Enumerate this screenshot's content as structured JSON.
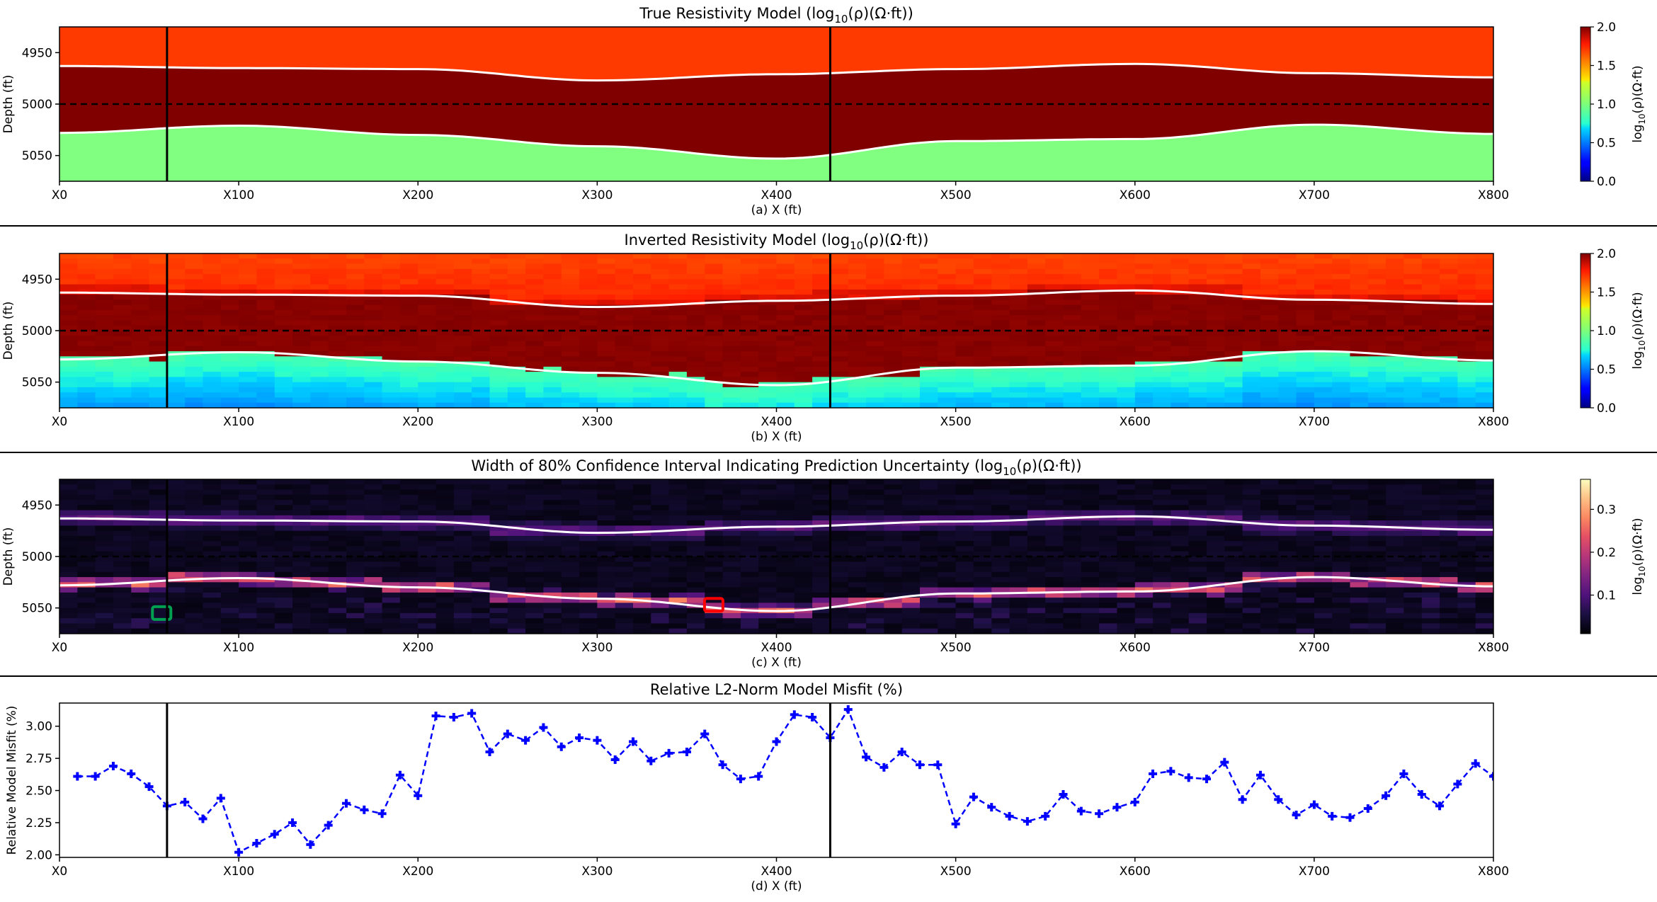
{
  "chart_data": [
    {
      "type": "heatmap",
      "title": "True Resistivity Model (log10(ρ)(Ω·ft))",
      "title_parts": {
        "pre": "True Resistivity Model (log",
        "sub": "10",
        "post": "(ρ)(Ω·ft))"
      },
      "xlabel": "(a) X (ft)",
      "ylabel": "Depth (ft)",
      "xlim": [
        0,
        800
      ],
      "ylim": [
        5075,
        4925
      ],
      "x_ticks": [
        0,
        100,
        200,
        300,
        400,
        500,
        600,
        700,
        800
      ],
      "x_tick_labels": [
        "X0",
        "X100",
        "X200",
        "X300",
        "X400",
        "X500",
        "X600",
        "X700",
        "X800"
      ],
      "y_ticks": [
        4950,
        5000,
        5050
      ],
      "y_tick_labels": [
        "4950",
        "5000",
        "5050"
      ],
      "colormap": "jet",
      "colorbar": {
        "label_pre": "log",
        "label_sub": "10",
        "label_post": "(ρ)(Ω·ft)",
        "range": [
          0,
          2
        ],
        "ticks": [
          "0.0",
          "0.5",
          "1.0",
          "1.5",
          "2.0"
        ]
      },
      "layers": [
        {
          "name": "top layer",
          "log10_rho": 1.7,
          "color": "#ff3a00"
        },
        {
          "name": "middle layer",
          "log10_rho": 2.0,
          "color": "#800000"
        },
        {
          "name": "bottom layer",
          "log10_rho": 0.9,
          "color": "#80ff80"
        }
      ],
      "upper_boundary": {
        "x": [
          0,
          100,
          200,
          300,
          400,
          500,
          600,
          700,
          800
        ],
        "depth": [
          4963,
          4965,
          4966,
          4977,
          4971,
          4966,
          4961,
          4970,
          4974
        ]
      },
      "lower_boundary": {
        "x": [
          0,
          100,
          200,
          300,
          400,
          500,
          600,
          700,
          800
        ],
        "depth": [
          5028,
          5021,
          5030,
          5041,
          5053,
          5036,
          5034,
          5020,
          5029
        ]
      },
      "reference_depth": 5000,
      "vertical_lines_x": [
        60,
        430
      ]
    },
    {
      "type": "heatmap",
      "title": "Inverted Resistivity Model (log10(ρ)(Ω·ft))",
      "title_parts": {
        "pre": "Inverted Resistivity Model (log",
        "sub": "10",
        "post": "(ρ)(Ω·ft))"
      },
      "xlabel": "(b) X (ft)",
      "ylabel": "Depth (ft)",
      "xlim": [
        0,
        800
      ],
      "ylim": [
        5075,
        4925
      ],
      "x_ticks": [
        0,
        100,
        200,
        300,
        400,
        500,
        600,
        700,
        800
      ],
      "x_tick_labels": [
        "X0",
        "X100",
        "X200",
        "X300",
        "X400",
        "X500",
        "X600",
        "X700",
        "X800"
      ],
      "y_ticks": [
        4950,
        5000,
        5050
      ],
      "y_tick_labels": [
        "4950",
        "5000",
        "5050"
      ],
      "colormap": "jet",
      "colorbar": {
        "label_pre": "log",
        "label_sub": "10",
        "label_post": "(ρ)(Ω·ft)",
        "range": [
          0,
          2
        ],
        "ticks": [
          "0.0",
          "0.5",
          "1.0",
          "1.5",
          "2.0"
        ]
      },
      "reference_depth": 5000,
      "vertical_lines_x": [
        60,
        430
      ]
    },
    {
      "type": "heatmap",
      "title": "Width of 80% Confidence Interval Indicating Prediction Uncertainty (log10(ρ)(Ω·ft))",
      "title_parts": {
        "pre": "Width of 80% Confidence Interval Indicating Prediction Uncertainty (log",
        "sub": "10",
        "post": "(ρ)(Ω·ft))"
      },
      "xlabel": "(c) X (ft)",
      "ylabel": "Depth (ft)",
      "xlim": [
        0,
        800
      ],
      "ylim": [
        5075,
        4925
      ],
      "x_ticks": [
        0,
        100,
        200,
        300,
        400,
        500,
        600,
        700,
        800
      ],
      "x_tick_labels": [
        "X0",
        "X100",
        "X200",
        "X300",
        "X400",
        "X500",
        "X600",
        "X700",
        "X800"
      ],
      "y_ticks": [
        4950,
        5000,
        5050
      ],
      "y_tick_labels": [
        "4950",
        "5000",
        "5050"
      ],
      "colormap": "magma",
      "colorbar": {
        "label_pre": "log",
        "label_sub": "10",
        "label_post": "(ρ)(Ω·ft)",
        "range": [
          0.01,
          0.37
        ],
        "ticks": [
          "0.1",
          "0.2",
          "0.3"
        ],
        "tick_values": [
          0.1,
          0.2,
          0.3
        ]
      },
      "reference_depth": 5000,
      "vertical_lines_x": [
        60,
        430
      ],
      "highlight_boxes": [
        {
          "x": 57,
          "depth": 5055,
          "color": "#00a050"
        },
        {
          "x": 365,
          "depth": 5047,
          "color": "#ff0000"
        }
      ]
    },
    {
      "type": "line",
      "title": "Relative L2-Norm Model Misfit (%)",
      "xlabel": "(d) X (ft)",
      "ylabel": "Relative Model Misfit (%)",
      "xlim": [
        0,
        800
      ],
      "ylim": [
        1.98,
        3.18
      ],
      "x_ticks": [
        0,
        100,
        200,
        300,
        400,
        500,
        600,
        700,
        800
      ],
      "x_tick_labels": [
        "X0",
        "X100",
        "X200",
        "X300",
        "X400",
        "X500",
        "X600",
        "X700",
        "X800"
      ],
      "y_ticks": [
        2.0,
        2.25,
        2.5,
        2.75,
        3.0
      ],
      "y_tick_labels": [
        "2.00",
        "2.25",
        "2.50",
        "2.75",
        "3.00"
      ],
      "line_color": "#0000ff",
      "line_style": "dashed",
      "marker": "plus",
      "vertical_lines_x": [
        60,
        430
      ],
      "x": [
        10,
        20,
        30,
        40,
        50,
        60,
        70,
        80,
        90,
        100,
        110,
        120,
        130,
        140,
        150,
        160,
        170,
        180,
        190,
        200,
        210,
        220,
        230,
        240,
        250,
        260,
        270,
        280,
        290,
        300,
        310,
        320,
        330,
        340,
        350,
        360,
        370,
        380,
        390,
        400,
        410,
        420,
        430,
        440,
        450,
        460,
        470,
        480,
        490,
        500,
        510,
        520,
        530,
        540,
        550,
        560,
        570,
        580,
        590,
        600,
        610,
        620,
        630,
        640,
        650,
        660,
        670,
        680,
        690,
        700,
        710,
        720,
        730,
        740,
        750,
        760,
        770,
        780,
        790,
        800
      ],
      "y": [
        2.61,
        2.61,
        2.69,
        2.63,
        2.53,
        2.38,
        2.41,
        2.28,
        2.44,
        2.02,
        2.09,
        2.16,
        2.25,
        2.08,
        2.23,
        2.4,
        2.35,
        2.32,
        2.62,
        2.46,
        3.08,
        3.07,
        3.1,
        2.8,
        2.94,
        2.89,
        2.99,
        2.84,
        2.91,
        2.89,
        2.74,
        2.88,
        2.73,
        2.79,
        2.8,
        2.94,
        2.7,
        2.59,
        2.61,
        2.88,
        3.09,
        3.07,
        2.91,
        3.13,
        2.76,
        2.68,
        2.8,
        2.7,
        2.7,
        2.24,
        2.45,
        2.37,
        2.3,
        2.26,
        2.3,
        2.47,
        2.34,
        2.32,
        2.37,
        2.41,
        2.63,
        2.65,
        2.6,
        2.59,
        2.72,
        2.43,
        2.62,
        2.43,
        2.31,
        2.39,
        2.3,
        2.29,
        2.36,
        2.46,
        2.63,
        2.47,
        2.38,
        2.55,
        2.71,
        2.61
      ]
    }
  ]
}
